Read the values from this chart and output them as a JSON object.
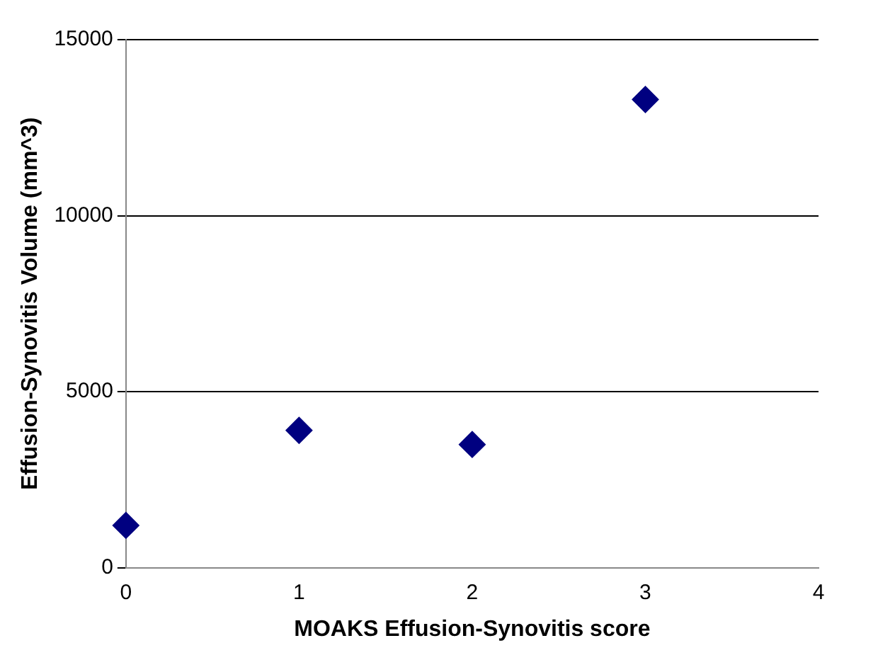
{
  "chart_data": {
    "type": "scatter",
    "xlabel": "MOAKS Effusion-Synovitis score",
    "ylabel": "Effusion-Synovitis Volume (mm^3)",
    "x": [
      0,
      1,
      2,
      3
    ],
    "values": [
      1200,
      3900,
      3500,
      13300
    ],
    "color": "#000080",
    "marker": "diamond",
    "xlim": [
      0,
      4
    ],
    "xticks": [
      0,
      1,
      2,
      3,
      4
    ],
    "ylim": [
      0,
      15000
    ],
    "yticks": [
      0,
      5000,
      10000,
      15000
    ],
    "grid": "y",
    "legend": false
  }
}
